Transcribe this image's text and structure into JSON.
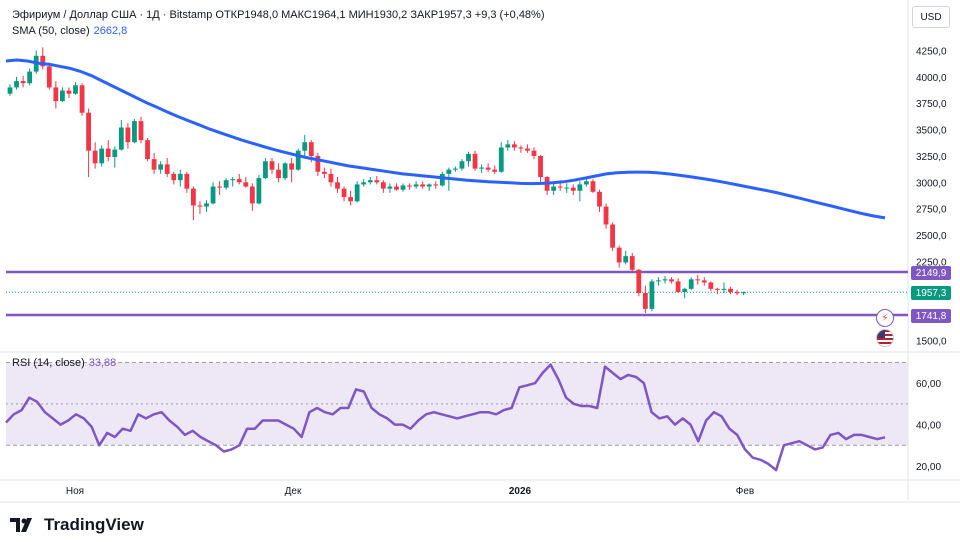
{
  "header": {
    "symbol": "Эфириум / Доллар США · 1Д · Bitstamp",
    "open_label": "ОТКР",
    "open": "1948,0",
    "high_label": "МАКС",
    "high": "1964,1",
    "low_label": "МИН",
    "low": "1930,2",
    "close_label": "ЗАКР",
    "close": "1957,3",
    "change": "+9,3 (+0,48%)",
    "sma_label": "SMA (50, close)",
    "sma_value": "2662,8",
    "rsi_label": "RSI (14, close)",
    "rsi_value": "33,88"
  },
  "currency": "USD",
  "price_tags": {
    "upper": "2149,9",
    "last": "1957,3",
    "lower": "1741,8"
  },
  "brand": "TradingView",
  "colors": {
    "up": "#089981",
    "down": "#f23645",
    "sma": "#2962ff",
    "level": "#7e57c2",
    "rsi": "#7e57c2",
    "rsi_band": "#ede7f6"
  },
  "chart_data": {
    "type": "candlestick",
    "price_axis": {
      "min": 1500,
      "max": 4250,
      "ticks": [
        "4250,0",
        "4000,0",
        "3750,0",
        "3500,0",
        "3250,0",
        "3000,0",
        "2750,0",
        "2500,0",
        "2250,0",
        "1500,0"
      ]
    },
    "time_axis": [
      "Ноя",
      "Дек",
      "2026",
      "Фев"
    ],
    "horizontal_levels": [
      2149.9,
      1741.8
    ],
    "candles": [
      [
        3840,
        3930,
        3820,
        3900
      ],
      [
        3900,
        4000,
        3880,
        3960
      ],
      [
        3960,
        4010,
        3900,
        3940
      ],
      [
        3940,
        4080,
        3920,
        4050
      ],
      [
        4050,
        4250,
        4030,
        4200
      ],
      [
        4200,
        4280,
        4070,
        4100
      ],
      [
        4100,
        4120,
        3880,
        3900
      ],
      [
        3900,
        3960,
        3700,
        3770
      ],
      [
        3770,
        3900,
        3760,
        3870
      ],
      [
        3870,
        3900,
        3800,
        3840
      ],
      [
        3840,
        3950,
        3830,
        3920
      ],
      [
        3920,
        3940,
        3630,
        3660
      ],
      [
        3660,
        3700,
        3050,
        3300
      ],
      [
        3300,
        3380,
        3130,
        3180
      ],
      [
        3180,
        3350,
        3150,
        3320
      ],
      [
        3320,
        3400,
        3200,
        3240
      ],
      [
        3240,
        3340,
        3140,
        3310
      ],
      [
        3310,
        3590,
        3300,
        3520
      ],
      [
        3520,
        3560,
        3320,
        3380
      ],
      [
        3380,
        3600,
        3370,
        3580
      ],
      [
        3580,
        3620,
        3370,
        3400
      ],
      [
        3400,
        3420,
        3200,
        3220
      ],
      [
        3220,
        3280,
        3080,
        3120
      ],
      [
        3120,
        3200,
        3080,
        3170
      ],
      [
        3170,
        3230,
        3050,
        3080
      ],
      [
        3080,
        3100,
        2980,
        3020
      ],
      [
        3020,
        3120,
        2960,
        3080
      ],
      [
        3080,
        3100,
        2900,
        2940
      ],
      [
        2940,
        2960,
        2640,
        2780
      ],
      [
        2780,
        2820,
        2700,
        2770
      ],
      [
        2770,
        2830,
        2720,
        2800
      ],
      [
        2800,
        3000,
        2790,
        2960
      ],
      [
        2960,
        3010,
        2880,
        2950
      ],
      [
        2950,
        3040,
        2930,
        3020
      ],
      [
        3020,
        3050,
        2960,
        3030
      ],
      [
        3030,
        3080,
        2980,
        3000
      ],
      [
        3000,
        3050,
        2950,
        2960
      ],
      [
        2960,
        2990,
        2730,
        2800
      ],
      [
        2800,
        3070,
        2790,
        3040
      ],
      [
        3040,
        3230,
        3030,
        3200
      ],
      [
        3200,
        3230,
        3080,
        3120
      ],
      [
        3120,
        3180,
        3000,
        3040
      ],
      [
        3040,
        3190,
        3020,
        3180
      ],
      [
        3180,
        3230,
        3000,
        3120
      ],
      [
        3120,
        3320,
        3110,
        3300
      ],
      [
        3300,
        3450,
        3250,
        3380
      ],
      [
        3380,
        3400,
        3190,
        3250
      ],
      [
        3250,
        3280,
        3060,
        3100
      ],
      [
        3100,
        3140,
        3040,
        3080
      ],
      [
        3080,
        3130,
        2960,
        3000
      ],
      [
        3000,
        3050,
        2900,
        2940
      ],
      [
        2940,
        2960,
        2820,
        2860
      ],
      [
        2860,
        2920,
        2780,
        2820
      ],
      [
        2820,
        3010,
        2810,
        2980
      ],
      [
        2980,
        3030,
        2960,
        3000
      ],
      [
        3000,
        3050,
        2980,
        3020
      ],
      [
        3020,
        3060,
        2980,
        3000
      ],
      [
        3000,
        3020,
        2900,
        2940
      ],
      [
        2940,
        2990,
        2900,
        2960
      ],
      [
        2960,
        2990,
        2920,
        2930
      ],
      [
        2930,
        2990,
        2910,
        2970
      ],
      [
        2970,
        2990,
        2930,
        2960
      ],
      [
        2960,
        3010,
        2940,
        2980
      ],
      [
        2980,
        3010,
        2940,
        2960
      ],
      [
        2960,
        2990,
        2920,
        2980
      ],
      [
        2980,
        3010,
        2940,
        2970
      ],
      [
        2970,
        3100,
        2960,
        3080
      ],
      [
        3080,
        3140,
        2920,
        3120
      ],
      [
        3120,
        3150,
        3100,
        3130
      ],
      [
        3130,
        3220,
        3110,
        3200
      ],
      [
        3200,
        3290,
        3150,
        3270
      ],
      [
        3270,
        3300,
        3110,
        3130
      ],
      [
        3130,
        3170,
        3090,
        3140
      ],
      [
        3140,
        3180,
        3100,
        3120
      ],
      [
        3120,
        3160,
        3080,
        3100
      ],
      [
        3100,
        3380,
        3090,
        3330
      ],
      [
        3330,
        3400,
        3300,
        3360
      ],
      [
        3360,
        3390,
        3300,
        3330
      ],
      [
        3330,
        3350,
        3280,
        3320
      ],
      [
        3320,
        3360,
        3280,
        3300
      ],
      [
        3300,
        3330,
        3220,
        3250
      ],
      [
        3250,
        3260,
        3000,
        3050
      ],
      [
        3050,
        3060,
        2880,
        2920
      ],
      [
        2920,
        3000,
        2880,
        2960
      ],
      [
        2960,
        3020,
        2920,
        2950
      ],
      [
        2950,
        2990,
        2900,
        2950
      ],
      [
        2950,
        2980,
        2880,
        2920
      ],
      [
        2920,
        3010,
        2820,
        2980
      ],
      [
        2980,
        3040,
        2960,
        3010
      ],
      [
        3010,
        3030,
        2900,
        2910
      ],
      [
        2910,
        2930,
        2720,
        2770
      ],
      [
        2770,
        2800,
        2560,
        2600
      ],
      [
        2600,
        2620,
        2350,
        2380
      ],
      [
        2380,
        2400,
        2190,
        2240
      ],
      [
        2240,
        2350,
        2220,
        2300
      ],
      [
        2300,
        2330,
        2150,
        2170
      ],
      [
        2170,
        2180,
        1920,
        1950
      ],
      [
        1950,
        2020,
        1760,
        1800
      ],
      [
        1800,
        2080,
        1780,
        2060
      ],
      [
        2060,
        2100,
        2020,
        2070
      ],
      [
        2070,
        2110,
        2040,
        2080
      ],
      [
        2080,
        2100,
        2040,
        2060
      ],
      [
        2060,
        2090,
        1950,
        1960
      ],
      [
        1960,
        2000,
        1900,
        1990
      ],
      [
        1990,
        2100,
        1980,
        2080
      ],
      [
        2080,
        2120,
        2030,
        2070
      ],
      [
        2070,
        2100,
        2020,
        2050
      ],
      [
        2050,
        2060,
        1970,
        1990
      ],
      [
        1990,
        2000,
        1940,
        1980
      ],
      [
        1980,
        2050,
        1950,
        1990
      ],
      [
        1990,
        2010,
        1940,
        1960
      ],
      [
        1960,
        1980,
        1930,
        1948
      ],
      [
        1948,
        1964.1,
        1930.2,
        1957.3
      ]
    ],
    "sma": [
      4150,
      4160,
      4150,
      4130,
      4120,
      4100,
      4080,
      4050,
      4010,
      3960,
      3910,
      3860,
      3810,
      3760,
      3715,
      3670,
      3625,
      3585,
      3545,
      3505,
      3470,
      3435,
      3400,
      3370,
      3340,
      3310,
      3285,
      3260,
      3235,
      3215,
      3195,
      3175,
      3155,
      3140,
      3125,
      3110,
      3095,
      3080,
      3070,
      3060,
      3050,
      3040,
      3030,
      3020,
      3012,
      3005,
      3000,
      2995,
      2990,
      2988,
      2990,
      2995,
      3005,
      3020,
      3040,
      3060,
      3080,
      3090,
      3095,
      3097,
      3095,
      3088,
      3078,
      3065,
      3050,
      3035,
      3018,
      3000,
      2980,
      2960,
      2940,
      2920,
      2900,
      2875,
      2850,
      2825,
      2800,
      2775,
      2750,
      2725,
      2700,
      2680,
      2662.8
    ],
    "sma_offset": 30,
    "rsi": {
      "min": 10,
      "max": 70,
      "band": [
        30,
        70
      ],
      "ticks": [
        "60,00",
        "40,00",
        "20,00"
      ],
      "values": [
        41,
        45,
        47,
        53,
        51,
        46,
        43,
        40,
        42,
        45,
        43,
        39,
        30,
        36,
        34,
        38,
        37,
        45,
        43,
        45,
        46,
        42,
        39,
        35,
        37,
        34,
        32,
        30,
        27,
        28,
        30,
        38,
        38,
        42,
        42,
        42,
        40,
        38,
        34,
        46,
        48,
        46,
        45,
        48,
        48,
        57,
        56,
        48,
        45,
        43,
        40,
        40,
        38,
        42,
        45,
        46,
        45,
        44,
        43,
        44,
        45,
        46,
        46,
        45,
        47,
        48,
        58,
        59,
        60,
        65,
        69,
        62,
        53,
        50,
        49,
        49,
        48,
        68,
        65,
        62,
        64,
        63,
        60,
        46,
        43,
        44,
        40,
        43,
        40,
        32,
        42,
        46,
        44,
        38,
        35,
        28,
        24,
        23,
        21,
        18,
        30,
        31,
        32,
        30,
        28,
        29,
        35,
        36,
        33,
        35,
        35,
        34,
        33,
        33.88
      ]
    }
  }
}
